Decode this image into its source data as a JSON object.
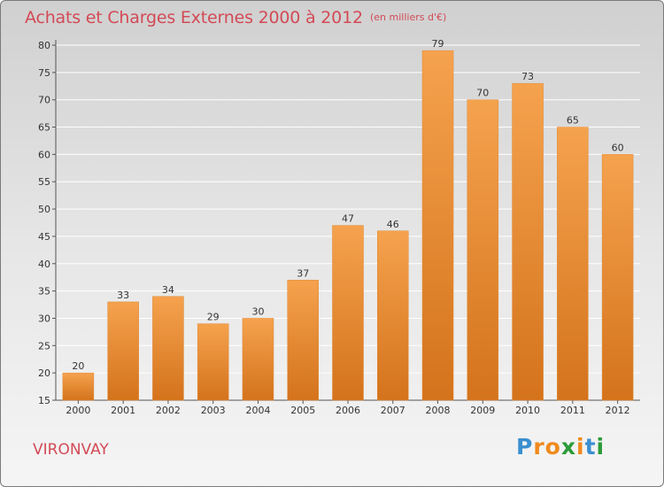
{
  "header": {
    "title": "Achats et Charges Externes 2000 à 2012",
    "subtitle": "(en milliers d'€)"
  },
  "footer": {
    "commune": "VIRONVAY",
    "logo_letters": [
      "P",
      "r",
      "o",
      "x",
      "i",
      "t",
      "i"
    ]
  },
  "colors": {
    "bar_top": "#f5a24e",
    "bar_bottom": "#d4731c",
    "title": "#d24a56",
    "grid": "#ffffff"
  },
  "chart_data": {
    "type": "bar",
    "title": "Achats et Charges Externes 2000 à 2012",
    "subtitle": "(en milliers d'€)",
    "categories": [
      "2000",
      "2001",
      "2002",
      "2003",
      "2004",
      "2005",
      "2006",
      "2007",
      "2008",
      "2009",
      "2010",
      "2011",
      "2012"
    ],
    "values": [
      20,
      33,
      34,
      29,
      30,
      37,
      47,
      46,
      79,
      70,
      73,
      65,
      60
    ],
    "ylim": [
      15,
      80
    ],
    "yticks": [
      15,
      20,
      25,
      30,
      35,
      40,
      45,
      50,
      55,
      60,
      65,
      70,
      75,
      80
    ],
    "grid": true,
    "legend": "none"
  }
}
